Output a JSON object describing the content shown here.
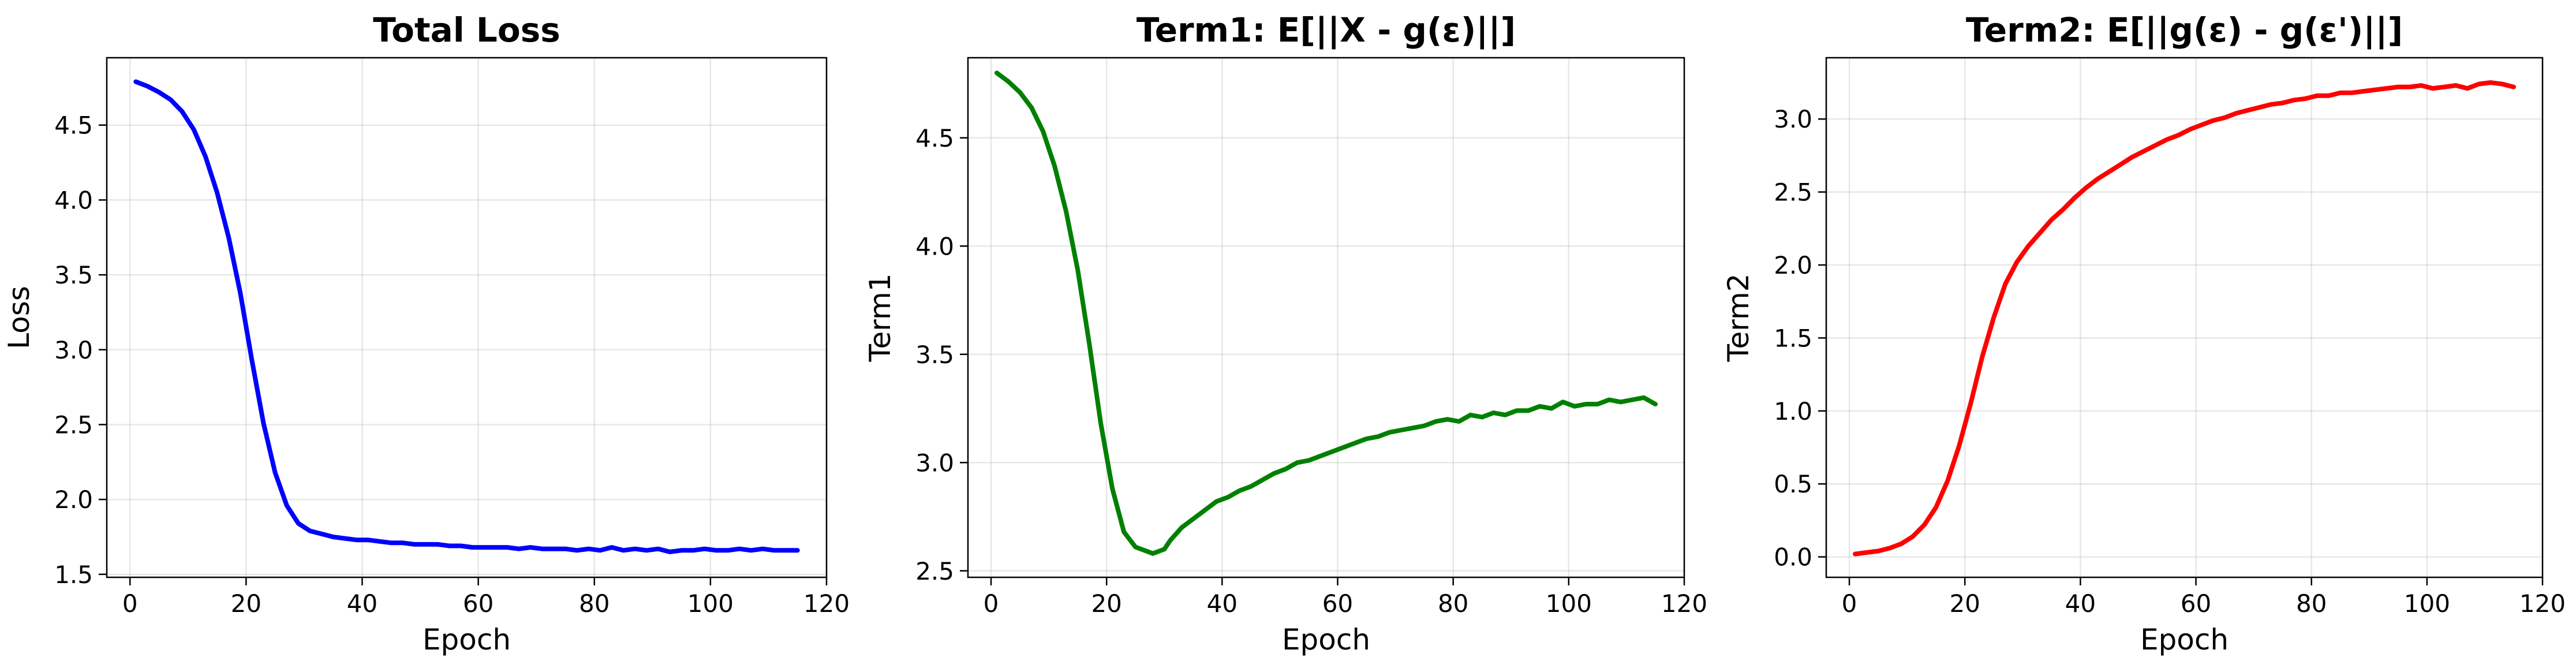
{
  "chart_data": [
    {
      "type": "line",
      "title": "Total Loss",
      "xlabel": "Epoch",
      "ylabel": "Loss",
      "xlim": [
        -4,
        120
      ],
      "ylim": [
        1.48,
        4.95
      ],
      "xticks": [
        0,
        20,
        40,
        60,
        80,
        100,
        120
      ],
      "yticks": [
        1.5,
        2.0,
        2.5,
        3.0,
        3.5,
        4.0,
        4.5
      ],
      "grid": true,
      "series": [
        {
          "color": "#0000ff",
          "x": [
            1,
            3,
            5,
            7,
            9,
            11,
            13,
            15,
            17,
            19,
            21,
            23,
            25,
            27,
            29,
            31,
            33,
            35,
            37,
            39,
            41,
            43,
            45,
            47,
            49,
            51,
            53,
            55,
            57,
            59,
            61,
            63,
            65,
            67,
            69,
            71,
            73,
            75,
            77,
            79,
            81,
            83,
            85,
            87,
            89,
            91,
            93,
            95,
            97,
            99,
            101,
            103,
            105,
            107,
            109,
            111,
            113,
            115
          ],
          "y": [
            4.79,
            4.76,
            4.72,
            4.67,
            4.59,
            4.47,
            4.29,
            4.05,
            3.75,
            3.38,
            2.93,
            2.51,
            2.18,
            1.96,
            1.84,
            1.79,
            1.77,
            1.75,
            1.74,
            1.73,
            1.73,
            1.72,
            1.71,
            1.71,
            1.7,
            1.7,
            1.7,
            1.69,
            1.69,
            1.68,
            1.68,
            1.68,
            1.68,
            1.67,
            1.68,
            1.67,
            1.67,
            1.67,
            1.66,
            1.67,
            1.66,
            1.68,
            1.66,
            1.67,
            1.66,
            1.67,
            1.65,
            1.66,
            1.66,
            1.67,
            1.66,
            1.66,
            1.67,
            1.66,
            1.67,
            1.66,
            1.66,
            1.66
          ]
        }
      ]
    },
    {
      "type": "line",
      "title": "Term1: E[||X - g(ε)||]",
      "xlabel": "Epoch",
      "ylabel": "Term1",
      "xlim": [
        -4,
        120
      ],
      "ylim": [
        2.47,
        4.87
      ],
      "xticks": [
        0,
        20,
        40,
        60,
        80,
        100,
        120
      ],
      "yticks": [
        2.5,
        3.0,
        3.5,
        4.0,
        4.5
      ],
      "grid": true,
      "series": [
        {
          "color": "#008000",
          "x": [
            1,
            3,
            5,
            7,
            9,
            11,
            13,
            15,
            17,
            19,
            21,
            23,
            25,
            27,
            28,
            29,
            30,
            31,
            33,
            35,
            37,
            39,
            41,
            43,
            45,
            47,
            49,
            51,
            53,
            55,
            57,
            59,
            61,
            63,
            65,
            67,
            69,
            71,
            73,
            75,
            77,
            79,
            81,
            83,
            85,
            87,
            89,
            91,
            93,
            95,
            97,
            99,
            101,
            103,
            105,
            107,
            109,
            111,
            113,
            115
          ],
          "y": [
            4.8,
            4.76,
            4.71,
            4.64,
            4.53,
            4.37,
            4.16,
            3.89,
            3.55,
            3.18,
            2.88,
            2.68,
            2.61,
            2.59,
            2.58,
            2.59,
            2.6,
            2.64,
            2.7,
            2.74,
            2.78,
            2.82,
            2.84,
            2.87,
            2.89,
            2.92,
            2.95,
            2.97,
            3.0,
            3.01,
            3.03,
            3.05,
            3.07,
            3.09,
            3.11,
            3.12,
            3.14,
            3.15,
            3.16,
            3.17,
            3.19,
            3.2,
            3.19,
            3.22,
            3.21,
            3.23,
            3.22,
            3.24,
            3.24,
            3.26,
            3.25,
            3.28,
            3.26,
            3.27,
            3.27,
            3.29,
            3.28,
            3.29,
            3.3,
            3.27
          ]
        }
      ]
    },
    {
      "type": "line",
      "title": "Term2: E[||g(ε) - g(ε')||]",
      "xlabel": "Epoch",
      "ylabel": "Term2",
      "xlim": [
        -4,
        120
      ],
      "ylim": [
        -0.14,
        3.42
      ],
      "xticks": [
        0,
        20,
        40,
        60,
        80,
        100,
        120
      ],
      "yticks": [
        0.0,
        0.5,
        1.0,
        1.5,
        2.0,
        2.5,
        3.0
      ],
      "grid": true,
      "series": [
        {
          "color": "#ff0000",
          "x": [
            1,
            3,
            5,
            7,
            9,
            11,
            13,
            15,
            17,
            19,
            21,
            23,
            25,
            27,
            29,
            31,
            33,
            35,
            37,
            39,
            41,
            43,
            45,
            47,
            49,
            51,
            53,
            55,
            57,
            59,
            61,
            63,
            65,
            67,
            69,
            71,
            73,
            75,
            77,
            79,
            81,
            83,
            85,
            87,
            89,
            91,
            93,
            95,
            97,
            99,
            101,
            103,
            105,
            107,
            109,
            111,
            113,
            115
          ],
          "y": [
            0.02,
            0.03,
            0.04,
            0.06,
            0.09,
            0.14,
            0.22,
            0.34,
            0.52,
            0.76,
            1.05,
            1.37,
            1.64,
            1.87,
            2.02,
            2.13,
            2.22,
            2.31,
            2.38,
            2.46,
            2.53,
            2.59,
            2.64,
            2.69,
            2.74,
            2.78,
            2.82,
            2.86,
            2.89,
            2.93,
            2.96,
            2.99,
            3.01,
            3.04,
            3.06,
            3.08,
            3.1,
            3.11,
            3.13,
            3.14,
            3.16,
            3.16,
            3.18,
            3.18,
            3.19,
            3.2,
            3.21,
            3.22,
            3.22,
            3.23,
            3.21,
            3.22,
            3.23,
            3.21,
            3.24,
            3.25,
            3.24,
            3.22
          ]
        }
      ]
    }
  ]
}
